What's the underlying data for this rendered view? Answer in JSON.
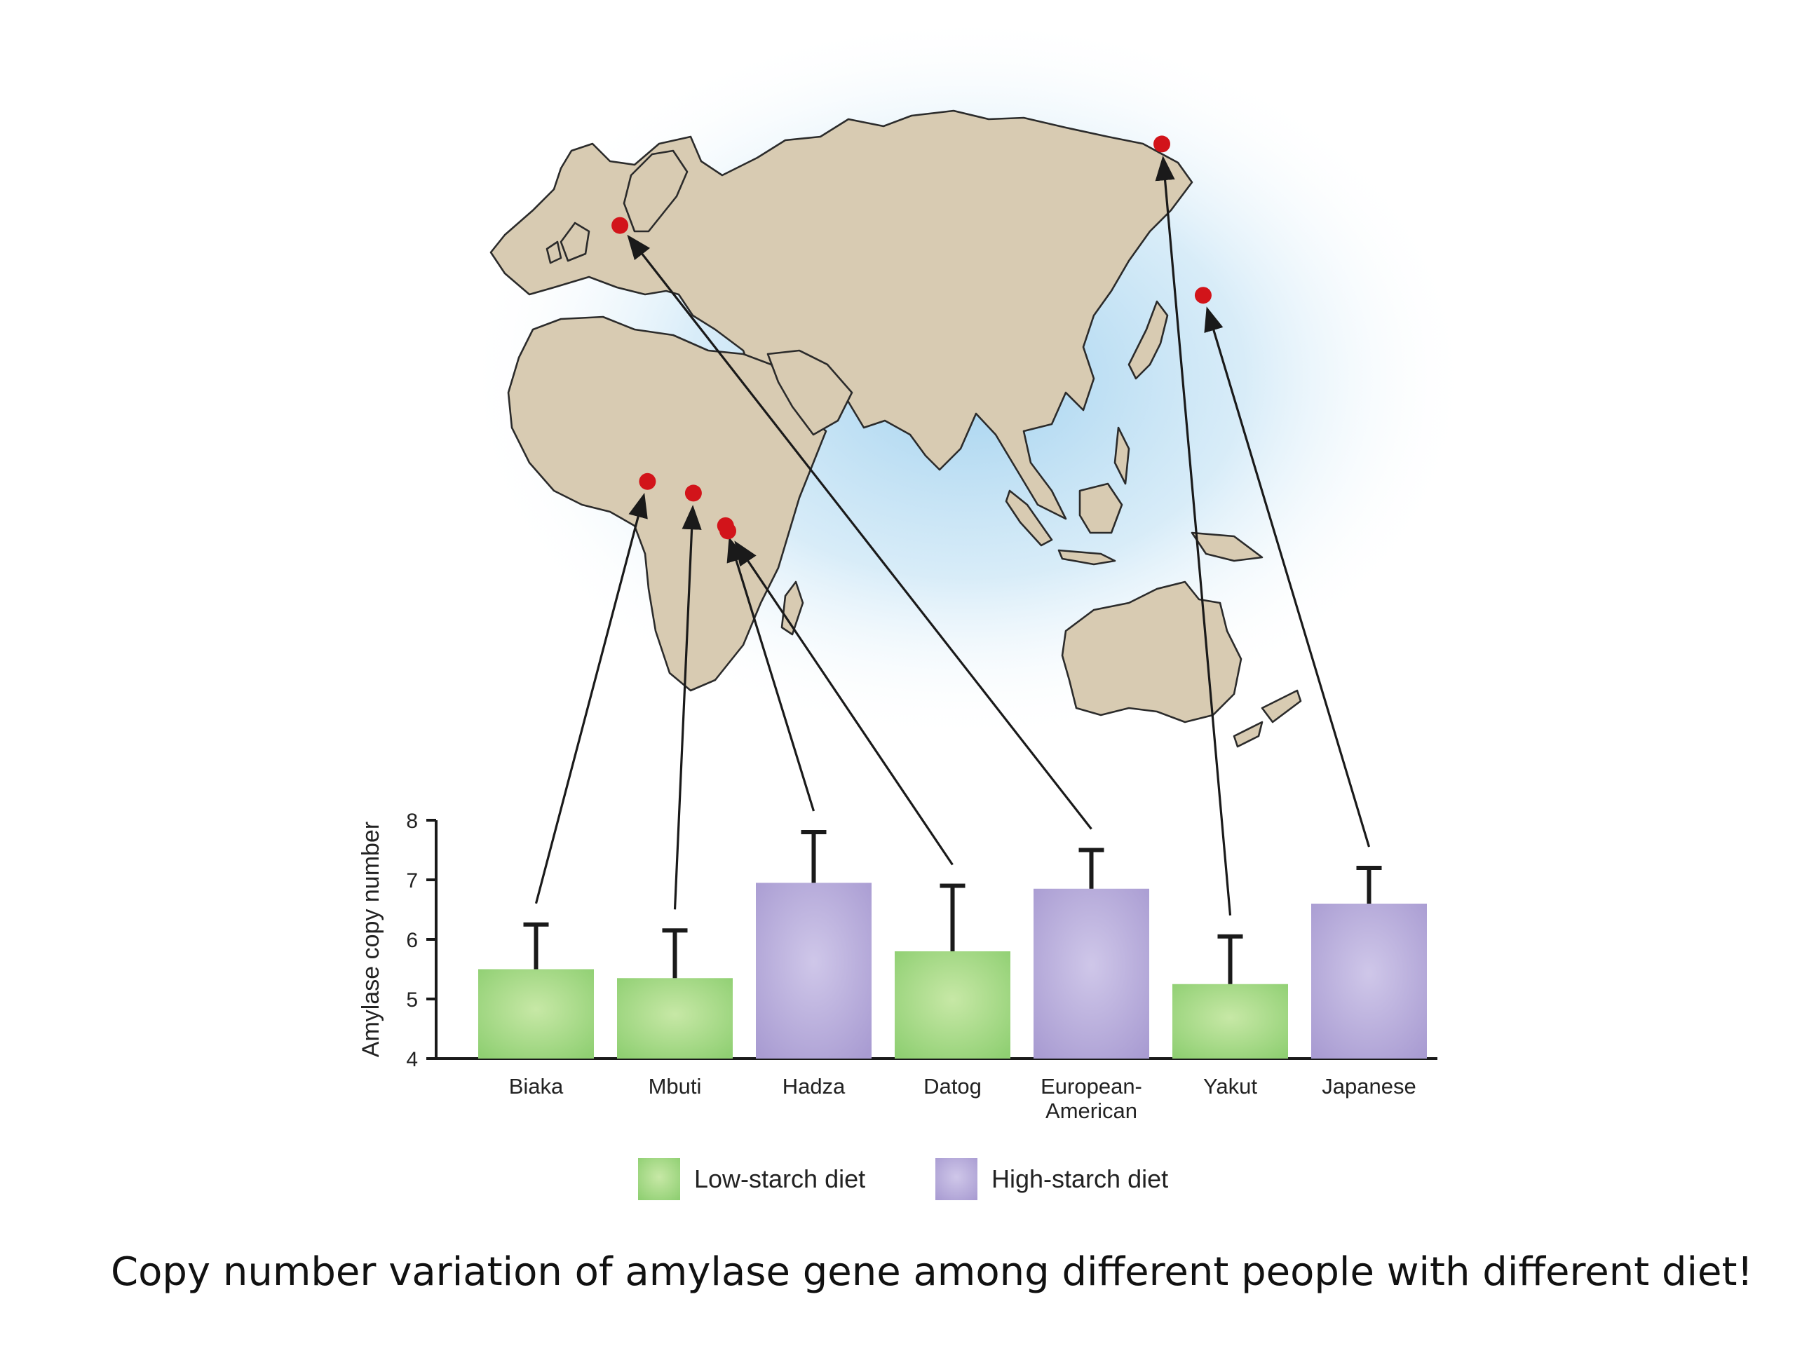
{
  "caption": "Copy number variation of amylase gene among different people with different diet!",
  "colors": {
    "low_starch": "#9bd47f",
    "high_starch": "#b4a8d8",
    "land": "#d8cbb2",
    "coast": "#2b2b2b",
    "ocean_glow": "#cfe8f6",
    "marker": "#d2141a"
  },
  "map": {
    "markers": [
      {
        "population": "Biaka",
        "lon": 18,
        "lat": 4
      },
      {
        "population": "Mbuti",
        "lon": 28,
        "lat": 2
      },
      {
        "population": "Hadza",
        "lon": 35,
        "lat": -3.6
      },
      {
        "population": "Datog",
        "lon": 35.5,
        "lat": -4.5
      },
      {
        "population": "European-American",
        "lon": 12,
        "lat": 48
      },
      {
        "population": "Yakut",
        "lon": 130,
        "lat": 62
      },
      {
        "population": "Japanese",
        "lon": 139,
        "lat": 36
      }
    ]
  },
  "chart_data": {
    "type": "bar",
    "categories": [
      "Biaka",
      "Mbuti",
      "Hadza",
      "Datog",
      "European-American",
      "Yakut",
      "Japanese"
    ],
    "values": [
      5.5,
      5.35,
      6.95,
      5.8,
      6.85,
      5.25,
      6.6
    ],
    "error_upper": [
      6.25,
      6.15,
      7.8,
      6.9,
      7.5,
      6.05,
      7.2
    ],
    "diet": [
      "low",
      "low",
      "high",
      "low",
      "high",
      "low",
      "high"
    ],
    "ylabel": "Amylase copy number",
    "xlabel": "",
    "ylim": [
      4,
      8
    ],
    "yticks": [
      4,
      5,
      6,
      7,
      8
    ],
    "legend": [
      {
        "key": "low",
        "label": "Low-starch diet"
      },
      {
        "key": "high",
        "label": "High-starch diet"
      }
    ]
  }
}
